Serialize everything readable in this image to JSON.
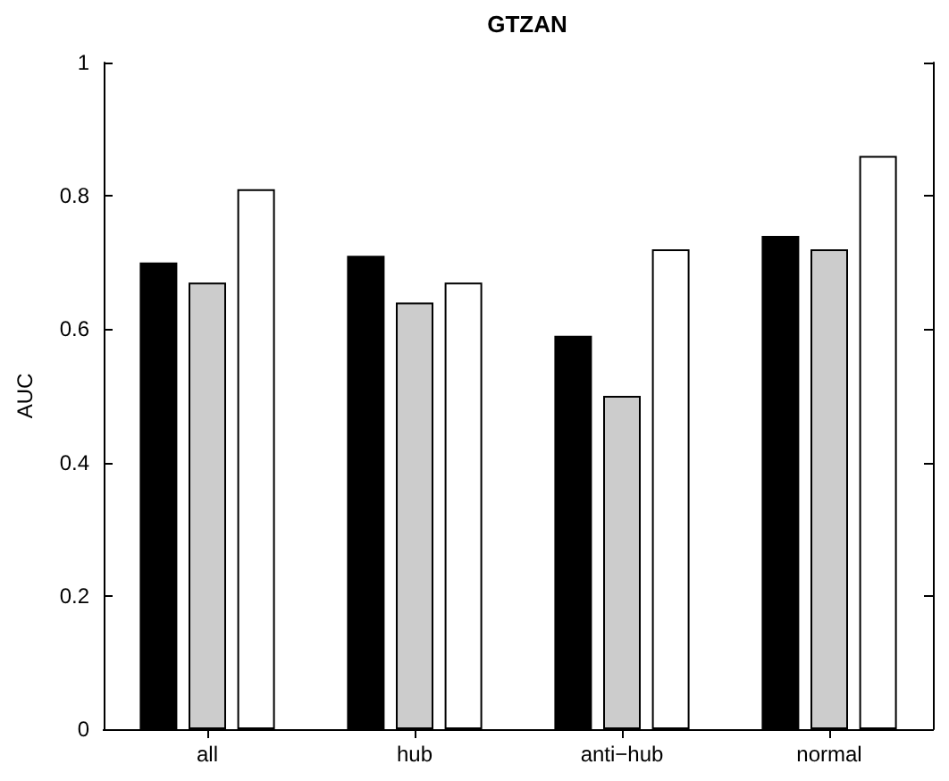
{
  "chart_data": {
    "type": "bar",
    "title": "GTZAN",
    "ylabel": "AUC",
    "categories": [
      "all",
      "hub",
      "anti−hub",
      "normal"
    ],
    "series": [
      {
        "color": "#000000",
        "values": [
          0.7,
          0.71,
          0.59,
          0.74
        ]
      },
      {
        "color": "#cccccc",
        "values": [
          0.67,
          0.64,
          0.5,
          0.72
        ]
      },
      {
        "color": "#ffffff",
        "values": [
          0.81,
          0.67,
          0.72,
          0.86
        ]
      }
    ],
    "ylim": [
      0,
      1
    ],
    "yticks": [
      0,
      0.2,
      0.4,
      0.6,
      0.8,
      1
    ],
    "grid": false
  }
}
